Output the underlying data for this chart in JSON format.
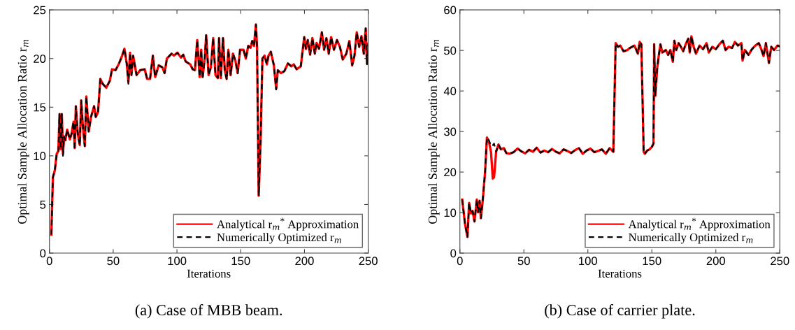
{
  "chart_data": [
    {
      "type": "line",
      "xlabel": "Iterations",
      "ylabel": "Optimal Sample Allocation Ratio r$_{m}$",
      "xlim": [
        0,
        250
      ],
      "ylim": [
        0,
        25
      ],
      "xticks": [
        0,
        50,
        100,
        150,
        200,
        250
      ],
      "yticks": [
        0,
        5,
        10,
        15,
        20,
        25
      ],
      "legend": "bottom right",
      "annotations": [
        "(a) Case of MBB beam."
      ],
      "x": [
        1.5,
        2.7,
        4.2,
        5.7,
        7,
        7.9,
        8.8,
        9.7,
        10.6,
        11.5,
        12.5,
        13.9,
        16,
        17.4,
        18.9,
        19.8,
        20.7,
        22.2,
        23.8,
        24.9,
        26.2,
        27.7,
        28.9,
        30.8,
        32.6,
        35,
        36.3,
        38.1,
        39.9,
        41.8,
        44.5,
        47.3,
        49.1,
        51.8,
        54.6,
        57,
        58.8,
        60.6,
        61.9,
        63.2,
        64.3,
        65.6,
        68.3,
        71.1,
        74.7,
        76.6,
        78.9,
        81.1,
        82.9,
        85.7,
        88.5,
        90.3,
        92.1,
        95.8,
        97.6,
        100.4,
        103.1,
        104.9,
        106.8,
        110.4,
        112.3,
        114.1,
        115.9,
        117.8,
        119,
        120.1,
        121.8,
        122.9,
        124.8,
        126.6,
        128.4,
        130.2,
        132.1,
        133,
        134.4,
        136.1,
        137.5,
        139,
        140.3,
        142.1,
        143.9,
        145.8,
        147.6,
        149.5,
        152.2,
        154,
        155.9,
        157.7,
        159,
        160.4,
        161.9,
        162.8,
        164.1,
        165.6,
        167,
        168.7,
        170.5,
        171.8,
        173.6,
        176,
        177.8,
        179.1,
        181.5,
        184.2,
        187,
        189.7,
        191.6,
        193.8,
        197.1,
        199.8,
        201.1,
        202.6,
        204.4,
        206.2,
        208.1,
        209.5,
        211.4,
        213.6,
        215.4,
        217.2,
        219,
        220.9,
        223.1,
        225.5,
        227.8,
        230,
        232.8,
        235.2,
        237.4,
        239.2,
        241,
        242.9,
        244.7,
        246.5,
        248,
        249,
        250
      ],
      "series": [
        {
          "name": "Analytical r$_{m}$$^{*}$ Approximation",
          "color": "#ff0000",
          "line_style": "solid",
          "values": [
            1.9,
            7.8,
            8.5,
            10.2,
            10.5,
            14.3,
            10.7,
            14.3,
            10.2,
            12.0,
            11.6,
            12.7,
            11.7,
            12.3,
            13.5,
            10.8,
            15.1,
            12.3,
            11.1,
            15.7,
            13.1,
            11.0,
            16.1,
            12.5,
            14.0,
            15.1,
            14.0,
            14.5,
            17.9,
            17.4,
            17.0,
            17.7,
            18.9,
            18.8,
            19.5,
            20.3,
            21.0,
            19.5,
            17.6,
            20.6,
            18.3,
            20.3,
            18.3,
            18.8,
            18.9,
            17.9,
            17.9,
            20.3,
            18.1,
            19.3,
            19.1,
            18.5,
            20.0,
            20.5,
            20.3,
            20.6,
            20.1,
            20.4,
            19.7,
            19.4,
            18.9,
            18.8,
            21.9,
            18.1,
            20.9,
            18.1,
            20.0,
            22.4,
            18.3,
            19.1,
            22.1,
            18.3,
            18.0,
            22.1,
            18.0,
            22.1,
            18.8,
            17.9,
            20.9,
            18.3,
            20.5,
            19.8,
            18.5,
            20.9,
            20.9,
            20.0,
            21.3,
            21.1,
            21.8,
            21.3,
            23.5,
            21.2,
            5.9,
            11.6,
            20.0,
            20.3,
            19.4,
            20.3,
            20.7,
            19.3,
            16.9,
            18.8,
            18.5,
            18.7,
            19.5,
            19.2,
            19.4,
            18.9,
            19.2,
            22.2,
            21.0,
            21.9,
            20.4,
            22.1,
            20.5,
            21.6,
            21.0,
            22.7,
            20.9,
            22.1,
            20.5,
            22.2,
            20.9,
            21.9,
            21.2,
            19.9,
            20.5,
            21.8,
            19.3,
            20.3,
            22.7,
            21.2,
            22.3,
            20.5,
            23.1,
            19.5,
            21.5
          ]
        },
        {
          "name": "Numerically Optimized r$_{m}$",
          "color": "#000000",
          "line_style": "dashed",
          "values": [
            1.9,
            7.8,
            8.5,
            10.2,
            10.5,
            14.3,
            10.7,
            14.3,
            10.0,
            12.0,
            11.6,
            12.7,
            11.7,
            12.3,
            13.5,
            10.6,
            15.1,
            12.3,
            11.1,
            15.7,
            13.1,
            11.0,
            16.1,
            12.5,
            14.0,
            15.1,
            14.0,
            14.5,
            17.9,
            17.4,
            17.0,
            17.7,
            18.9,
            18.8,
            19.5,
            20.3,
            21.0,
            19.5,
            17.4,
            20.6,
            18.3,
            20.3,
            18.3,
            18.8,
            18.9,
            17.9,
            17.9,
            20.3,
            18.1,
            19.3,
            19.1,
            18.5,
            20.0,
            20.5,
            20.3,
            20.6,
            20.1,
            20.4,
            19.7,
            19.4,
            18.9,
            18.8,
            21.9,
            18.1,
            20.9,
            17.9,
            20.0,
            22.4,
            18.3,
            19.1,
            22.1,
            18.3,
            18.0,
            22.1,
            18.0,
            22.1,
            18.8,
            17.8,
            20.9,
            18.3,
            20.5,
            19.8,
            18.5,
            20.9,
            20.9,
            20.0,
            21.3,
            21.1,
            21.8,
            21.3,
            23.5,
            21.2,
            5.9,
            11.6,
            20.0,
            20.3,
            19.4,
            20.3,
            20.7,
            19.3,
            16.8,
            18.8,
            18.5,
            18.7,
            19.5,
            19.2,
            19.4,
            18.9,
            19.2,
            22.2,
            21.0,
            21.9,
            20.4,
            22.1,
            20.5,
            21.6,
            21.0,
            22.7,
            20.9,
            22.1,
            20.5,
            22.2,
            20.9,
            21.9,
            21.2,
            19.9,
            20.5,
            21.8,
            19.3,
            20.3,
            22.7,
            21.2,
            22.3,
            20.5,
            23.1,
            19.4,
            21.5
          ]
        }
      ]
    },
    {
      "type": "line",
      "xlabel": "Iterations",
      "ylabel": "Optimal Sample Allocation Ratio r$_{m}$",
      "xlim": [
        0,
        250
      ],
      "ylim": [
        0,
        60
      ],
      "xticks": [
        0,
        50,
        100,
        150,
        200,
        250
      ],
      "yticks": [
        0,
        10,
        20,
        30,
        40,
        50,
        60
      ],
      "legend": "bottom right",
      "annotations": [
        "(b) Case of carrier plate."
      ],
      "x": [
        1.8,
        4,
        5.9,
        7.2,
        8.6,
        9.9,
        11.4,
        13.2,
        14.2,
        15.4,
        16.4,
        17.8,
        19.7,
        21.1,
        22.8,
        24.3,
        25.7,
        26.7,
        28.3,
        30.1,
        32,
        34.4,
        36.2,
        38.6,
        42,
        45,
        48,
        51,
        54,
        57,
        60,
        63,
        66,
        69,
        72,
        75,
        78,
        81,
        84,
        87,
        90,
        93,
        96,
        99,
        102,
        105,
        108,
        111,
        114,
        117,
        119.9,
        121.7,
        123.5,
        125.4,
        127.8,
        130.9,
        132.7,
        136.4,
        139.1,
        140.5,
        141.8,
        143.6,
        144.5,
        146.4,
        148.2,
        150,
        151.3,
        151.8,
        152.7,
        154.2,
        155.5,
        156.7,
        158.2,
        160.9,
        162.7,
        164.5,
        166.4,
        167.6,
        169.1,
        170.9,
        172.7,
        174.5,
        176.4,
        178.5,
        179.6,
        180.9,
        182.7,
        184.5,
        187.3,
        190,
        192.7,
        194.5,
        197.3,
        200,
        202.7,
        205.5,
        207.6,
        210,
        212.7,
        214.9,
        217.3,
        220,
        220.9,
        222.7,
        225.5,
        228.2,
        230.9,
        233.6,
        235.5,
        237.3,
        239.1,
        241.5,
        243.3,
        245.5,
        248.2,
        250
      ],
      "series": [
        {
          "name": "Analytical r$_{m}$$^{*}$ Approximation",
          "color": "#ff0000",
          "line_style": "solid",
          "values": [
            13.2,
            7.2,
            4.0,
            12.4,
            9.8,
            10.4,
            7.8,
            13.2,
            10.1,
            12.9,
            8.6,
            12.9,
            20.1,
            28.5,
            27.3,
            25.0,
            18.4,
            18.7,
            25.0,
            26.8,
            25.6,
            25.9,
            24.7,
            24.5,
            24.9,
            25.8,
            25.1,
            24.6,
            25.5,
            25.0,
            26.0,
            24.8,
            25.3,
            24.9,
            25.7,
            25.0,
            24.6,
            25.6,
            25.2,
            24.7,
            25.4,
            25.9,
            24.5,
            25.3,
            25.8,
            24.9,
            25.2,
            25.6,
            24.5,
            25.9,
            25.0,
            51.8,
            50.9,
            51.2,
            49.8,
            50.1,
            50.6,
            51.2,
            49.2,
            52.1,
            51.5,
            25.0,
            24.5,
            25.3,
            25.6,
            26.2,
            27.0,
            51.5,
            38.8,
            45.7,
            48.9,
            51.5,
            49.5,
            50.1,
            48.9,
            50.1,
            47.2,
            52.4,
            50.1,
            51.8,
            50.9,
            49.8,
            51.5,
            52.9,
            49.5,
            53.5,
            50.9,
            49.2,
            51.2,
            50.3,
            51.8,
            49.5,
            50.9,
            50.3,
            51.5,
            52.4,
            50.1,
            50.9,
            50.6,
            52.1,
            51.2,
            51.8,
            47.5,
            50.1,
            48.9,
            50.3,
            51.2,
            51.8,
            50.3,
            48.6,
            51.8,
            46.9,
            50.9,
            50.1,
            51.2,
            51.0
          ]
        },
        {
          "name": "Numerically Optimized r$_{m}$",
          "color": "#000000",
          "line_style": "dashed",
          "values": [
            13.2,
            7.2,
            4.0,
            12.4,
            9.8,
            10.4,
            7.8,
            13.2,
            10.1,
            12.9,
            8.6,
            12.9,
            20.1,
            28.5,
            27.8,
            26.4,
            26.6,
            27.0,
            25.0,
            26.8,
            25.6,
            25.9,
            24.7,
            24.5,
            24.9,
            25.8,
            25.1,
            24.6,
            25.5,
            25.0,
            26.0,
            24.8,
            25.3,
            24.9,
            25.7,
            25.0,
            24.6,
            25.6,
            25.2,
            24.7,
            25.4,
            25.9,
            24.5,
            25.3,
            25.8,
            24.9,
            25.2,
            25.6,
            24.5,
            25.9,
            25.0,
            51.8,
            50.9,
            51.2,
            49.8,
            50.1,
            50.6,
            51.2,
            49.2,
            52.1,
            51.5,
            25.0,
            24.5,
            25.3,
            25.6,
            26.2,
            27.0,
            51.5,
            38.8,
            45.7,
            48.9,
            51.5,
            49.5,
            50.1,
            48.9,
            50.1,
            47.2,
            52.4,
            50.1,
            51.8,
            50.9,
            49.8,
            51.5,
            52.9,
            49.5,
            53.5,
            50.9,
            49.2,
            51.2,
            50.3,
            51.8,
            49.5,
            50.9,
            50.3,
            51.5,
            52.4,
            50.1,
            50.9,
            50.6,
            52.1,
            51.2,
            51.8,
            47.5,
            50.1,
            48.9,
            50.3,
            51.2,
            51.8,
            50.3,
            48.6,
            51.8,
            46.9,
            50.9,
            50.1,
            51.2,
            51.0
          ]
        }
      ]
    }
  ]
}
